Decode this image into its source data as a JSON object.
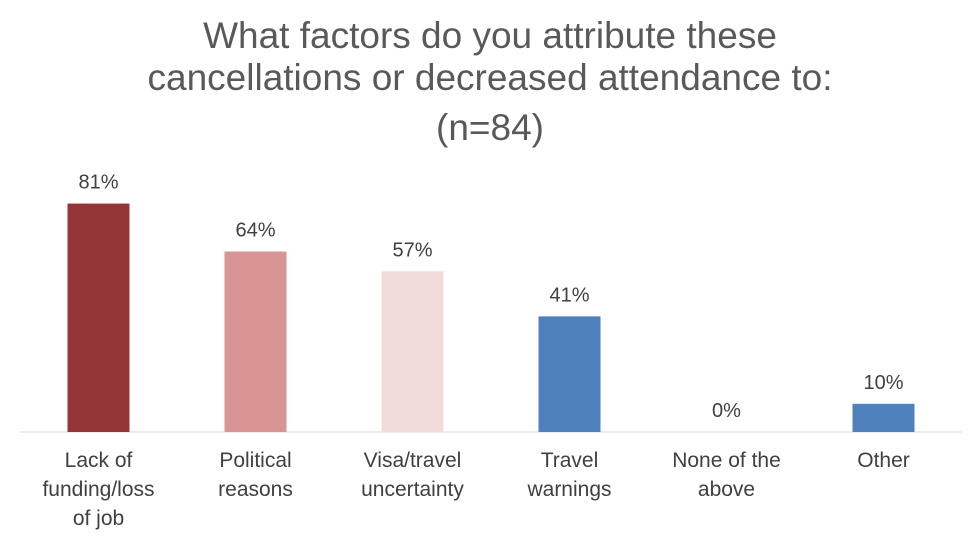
{
  "chart_data": {
    "type": "bar",
    "title_lines": [
      "What factors do you attribute these",
      "cancellations or decreased attendance to:",
      "(n=84)"
    ],
    "categories": [
      [
        "Lack of",
        "funding/loss",
        "of job"
      ],
      [
        "Political",
        "reasons"
      ],
      [
        "Visa/travel",
        "uncertainty"
      ],
      [
        "Travel",
        "warnings"
      ],
      [
        "None of the",
        "above"
      ],
      [
        "Other"
      ]
    ],
    "values": [
      81,
      64,
      57,
      41,
      0,
      10
    ],
    "value_labels": [
      "81%",
      "64%",
      "57%",
      "41%",
      "0%",
      "10%"
    ],
    "colors": [
      "#943538",
      "#d89594",
      "#f2dcdb",
      "#4f81bd",
      "#4f81bd",
      "#4f81bd"
    ],
    "ylim": [
      0,
      100
    ],
    "xlabel": "",
    "ylabel": ""
  }
}
